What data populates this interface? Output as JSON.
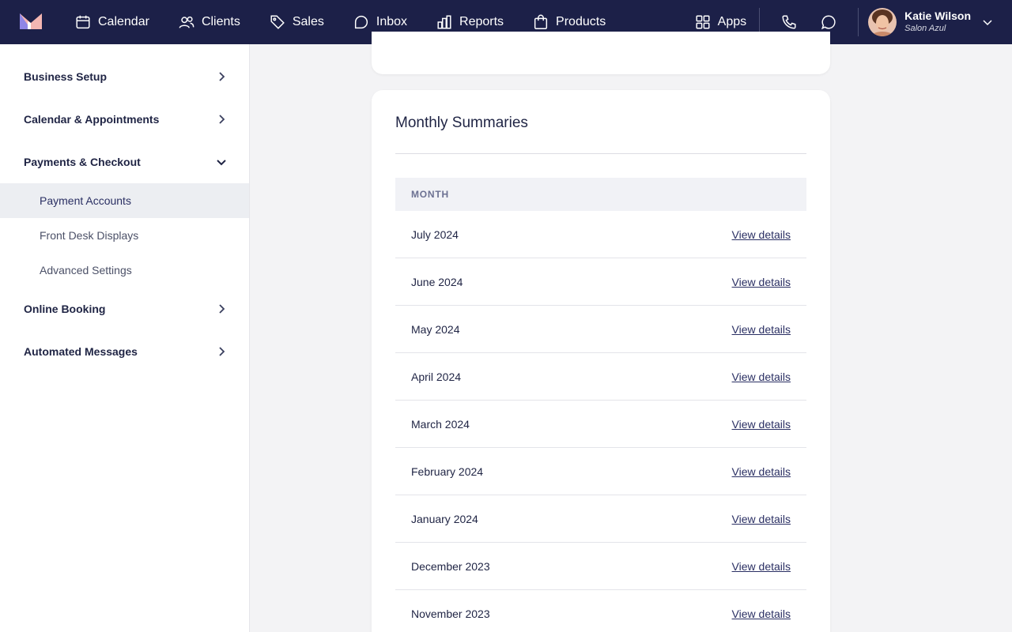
{
  "nav": {
    "items": [
      {
        "label": "Calendar",
        "icon": "calendar-icon"
      },
      {
        "label": "Clients",
        "icon": "clients-icon"
      },
      {
        "label": "Sales",
        "icon": "tag-icon"
      },
      {
        "label": "Inbox",
        "icon": "inbox-icon"
      },
      {
        "label": "Reports",
        "icon": "reports-icon"
      },
      {
        "label": "Products",
        "icon": "bag-icon"
      }
    ],
    "apps_label": "Apps",
    "user": {
      "name": "Katie Wilson",
      "business": "Salon Azul"
    }
  },
  "sidebar": {
    "sections": [
      {
        "label": "Business Setup",
        "expanded": false
      },
      {
        "label": "Calendar & Appointments",
        "expanded": false
      },
      {
        "label": "Payments & Checkout",
        "expanded": true,
        "children": [
          {
            "label": "Payment Accounts",
            "active": true
          },
          {
            "label": "Front Desk Displays",
            "active": false
          },
          {
            "label": "Advanced Settings",
            "active": false
          }
        ]
      },
      {
        "label": "Online Booking",
        "expanded": false
      },
      {
        "label": "Automated Messages",
        "expanded": false
      }
    ]
  },
  "main": {
    "title": "Monthly Summaries",
    "column_header": "MONTH",
    "link_label": "View details",
    "rows": [
      "July 2024",
      "June 2024",
      "May 2024",
      "April 2024",
      "March 2024",
      "February 2024",
      "January 2024",
      "December 2023",
      "November 2023"
    ]
  },
  "colors": {
    "topbar": "#1c2048",
    "accent": "#2a2f63",
    "logo_left": "#8f86e6",
    "logo_right": "#f4b6b2"
  }
}
